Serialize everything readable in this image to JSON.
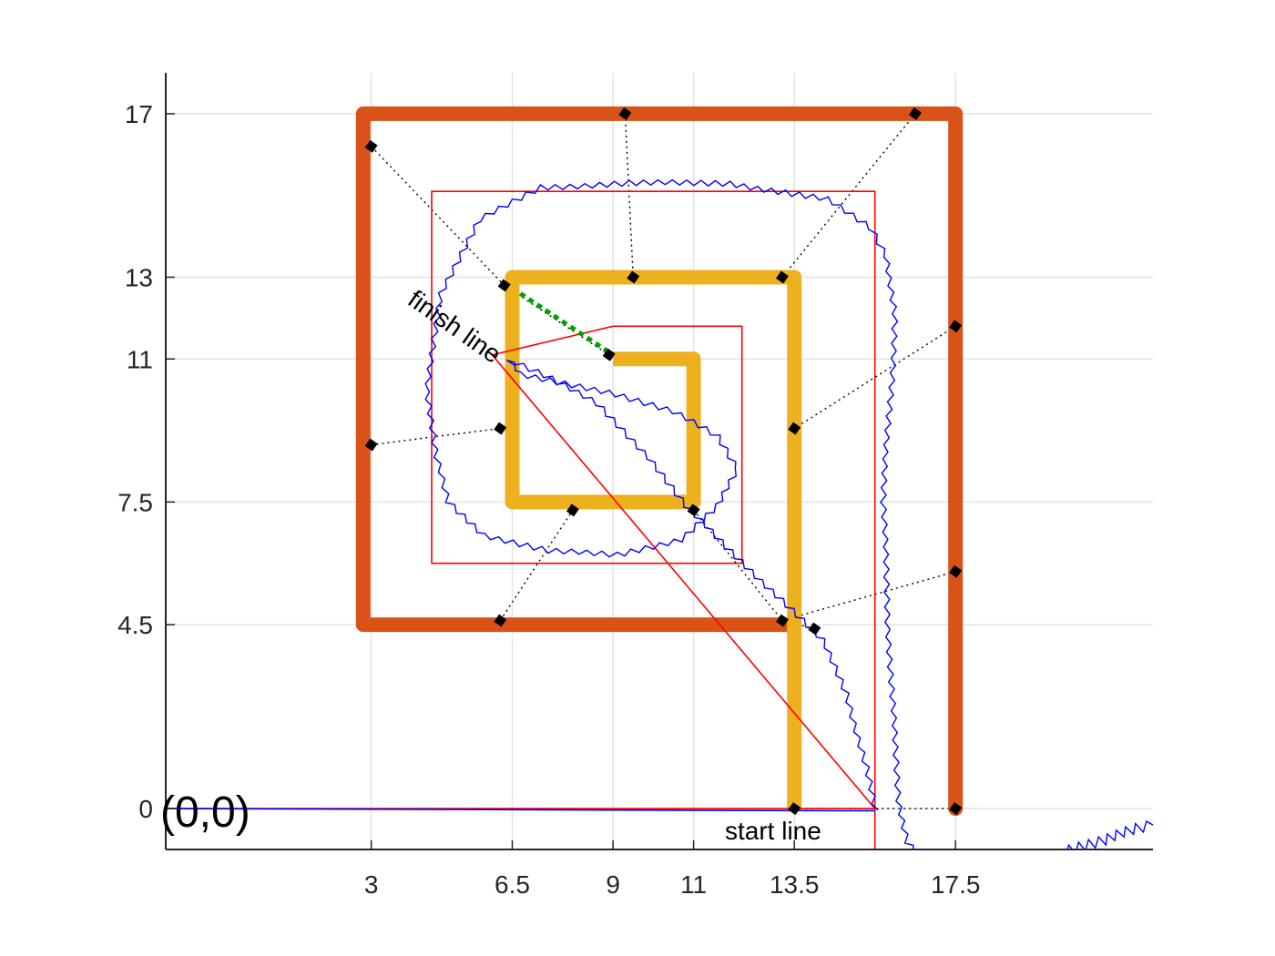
{
  "chart_data": {
    "type": "line",
    "title": "",
    "xlabel": "",
    "ylabel": "",
    "xlim": [
      -2.1,
      22.4
    ],
    "ylim": [
      -1,
      18
    ],
    "xticks": [
      3,
      6.5,
      9,
      11,
      13.5,
      17.5
    ],
    "xtick_labels": [
      "3",
      "6.5",
      "9",
      "11",
      "13.5",
      "17.5"
    ],
    "yticks": [
      0,
      4.5,
      7.5,
      11,
      13,
      17
    ],
    "ytick_labels": [
      "0",
      "4.5",
      "7.5",
      "11",
      "13",
      "17"
    ],
    "grid": true,
    "legend": "none",
    "colors": {
      "outer_wall": "#d95319",
      "inner_wall": "#edb120",
      "reference_path": "#ff0000",
      "actual_path": "#0000ff",
      "finish_line": "#00a000",
      "grid": "#e3e3e3",
      "axis": "#262626"
    },
    "outer_wall": [
      [
        13.5,
        4.5
      ],
      [
        2.8,
        4.5
      ],
      [
        2.8,
        17
      ],
      [
        17.5,
        17
      ],
      [
        17.5,
        0
      ]
    ],
    "inner_wall": [
      [
        13.5,
        0
      ],
      [
        13.5,
        13
      ],
      [
        6.5,
        13
      ],
      [
        6.5,
        7.5
      ],
      [
        11,
        7.5
      ],
      [
        11,
        11
      ],
      [
        9,
        11
      ]
    ],
    "reference_path": [
      [
        -2.1,
        0
      ],
      [
        15.5,
        0
      ],
      [
        6,
        11.1
      ],
      [
        9,
        11.8
      ],
      [
        12.2,
        11.8
      ],
      [
        12.2,
        6
      ],
      [
        4.5,
        6
      ],
      [
        4.5,
        15.1
      ],
      [
        15.5,
        15.1
      ],
      [
        15.5,
        -1
      ]
    ],
    "actual_path": [
      [
        -2.1,
        0
      ],
      [
        14.5,
        -0.05
      ],
      [
        15.5,
        -0.05
      ],
      [
        15.3,
        1
      ],
      [
        14.8,
        2.8
      ],
      [
        14.2,
        4.1
      ],
      [
        13.2,
        5.1
      ],
      [
        11.8,
        6.4
      ],
      [
        10.8,
        7.4
      ],
      [
        9.9,
        8.6
      ],
      [
        8.6,
        9.9
      ],
      [
        7.3,
        10.6
      ],
      [
        6.4,
        11
      ],
      [
        6.7,
        10.6
      ],
      [
        8.9,
        10.2
      ],
      [
        10.5,
        9.7
      ],
      [
        11.6,
        9.1
      ],
      [
        12.1,
        8.3
      ],
      [
        11.6,
        7.4
      ],
      [
        10.7,
        6.6
      ],
      [
        9.1,
        6.2
      ],
      [
        7.4,
        6.3
      ],
      [
        5.8,
        6.7
      ],
      [
        4.9,
        7.5
      ],
      [
        4.6,
        8.6
      ],
      [
        4.4,
        10.2
      ],
      [
        4.7,
        12.6
      ],
      [
        5.7,
        14.4
      ],
      [
        7.2,
        15.2
      ],
      [
        9.4,
        15.3
      ],
      [
        11.9,
        15.3
      ],
      [
        14.3,
        14.9
      ],
      [
        15.4,
        14.2
      ],
      [
        15.8,
        13.5
      ],
      [
        16,
        12.1
      ],
      [
        15.9,
        10.3
      ],
      [
        15.7,
        7.5
      ],
      [
        15.8,
        5.3
      ],
      [
        15.9,
        3.1
      ],
      [
        16,
        1.5
      ],
      [
        16.1,
        0.2
      ],
      [
        16.3,
        -0.8
      ],
      [
        16.6,
        -1.2
      ]
    ],
    "actual_path_tail": [
      [
        20.2,
        -1
      ],
      [
        21.2,
        -0.8
      ],
      [
        22,
        -0.5
      ],
      [
        22.4,
        -0.4
      ]
    ],
    "finish_line": [
      [
        6.7,
        12.6
      ],
      [
        9,
        11.1
      ]
    ],
    "checkpoints": [
      [
        3,
        16.2
      ],
      [
        9.3,
        17
      ],
      [
        16.5,
        17
      ],
      [
        17.5,
        11.8
      ],
      [
        17.5,
        5.8
      ],
      [
        14,
        4.4
      ],
      [
        13.5,
        0
      ],
      [
        17.5,
        0
      ],
      [
        3,
        8.9
      ],
      [
        6.2,
        9.3
      ],
      [
        6.3,
        12.8
      ],
      [
        9.5,
        13
      ],
      [
        13.2,
        13
      ],
      [
        13.5,
        9.3
      ],
      [
        13.2,
        4.6
      ],
      [
        6.2,
        4.6
      ],
      [
        8,
        7.3
      ],
      [
        11,
        7.3
      ],
      [
        8.9,
        11.1
      ]
    ],
    "annotations": {
      "origin": "(0,0)",
      "start": "start line",
      "finish": "finish line"
    }
  }
}
